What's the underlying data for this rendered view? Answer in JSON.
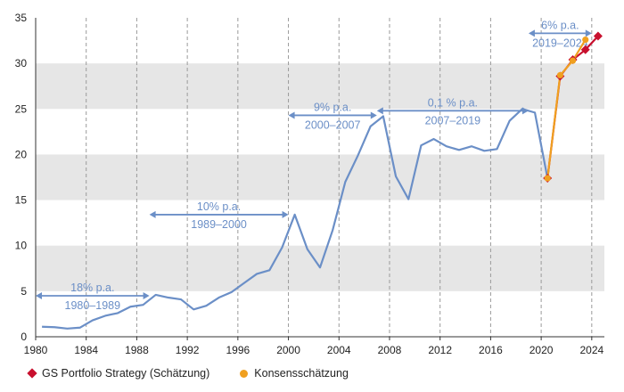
{
  "chart_data": {
    "type": "line",
    "xlim": [
      1980,
      2025
    ],
    "ylim": [
      0,
      35
    ],
    "x_ticks": [
      "1980",
      "1984",
      "1988",
      "1992",
      "1996",
      "2000",
      "2004",
      "2008",
      "2012",
      "2016",
      "2020",
      "2024"
    ],
    "y_ticks": [
      "0",
      "5",
      "10",
      "15",
      "20",
      "25",
      "30",
      "35"
    ],
    "grid": "alternating horizontal bands, dashed vertical lines",
    "legend_position": "bottom-left",
    "colors": {
      "history": "#6b8fc7",
      "gs": "#c8102e",
      "consensus": "#f0a020",
      "band": "#e6e6e6",
      "annotation": "#6b8fc7"
    },
    "series": [
      {
        "key": "history",
        "x": [
          1980.5,
          1981.5,
          1982.5,
          1983.5,
          1984.5,
          1985.5,
          1986.5,
          1987.5,
          1988.5,
          1989.5,
          1990.5,
          1991.5,
          1992.5,
          1993.5,
          1994.5,
          1995.5,
          1996.5,
          1997.5,
          1998.5,
          1999.5,
          2000.5,
          2001.5,
          2002.5,
          2003.5,
          2004.5,
          2005.5,
          2006.5,
          2007.5,
          2008.5,
          2009.5,
          2010.5,
          2011.5,
          2012.5,
          2013.5,
          2014.5,
          2015.5,
          2016.5,
          2017.5,
          2018.5,
          2019.5,
          2020.5
        ],
        "values": [
          1.1,
          1.05,
          0.9,
          1.0,
          1.8,
          2.3,
          2.6,
          3.3,
          3.5,
          4.6,
          4.3,
          4.1,
          3.0,
          3.4,
          4.3,
          4.9,
          5.9,
          6.9,
          7.3,
          9.8,
          13.4,
          9.6,
          7.6,
          11.7,
          17.0,
          19.9,
          23.1,
          24.2,
          17.6,
          15.1,
          21.0,
          21.7,
          20.9,
          20.5,
          20.9,
          20.4,
          20.6,
          23.7,
          25.0,
          24.6,
          17.4
        ]
      },
      {
        "key": "consensus",
        "name": "Konsensschätzung",
        "x": [
          2020.5,
          2021.5,
          2022.5,
          2023.5
        ],
        "values": [
          17.4,
          28.7,
          30.3,
          32.6
        ]
      },
      {
        "key": "gs",
        "name": "GS Portfolio Strategy (Schätzung)",
        "x": [
          2020.5,
          2021.5,
          2022.5,
          2023.5,
          2024.5
        ],
        "values": [
          17.4,
          28.6,
          30.4,
          31.5,
          33.0
        ]
      }
    ],
    "annotations": [
      {
        "rate": "18% p.a.",
        "period": "1980–1989",
        "x_from": 1980,
        "x_to": 1989,
        "y": 4.5
      },
      {
        "rate": "10% p.a.",
        "period": "1989–2000",
        "x_from": 1989,
        "x_to": 2000,
        "y": 13.4
      },
      {
        "rate": "9% p.a.",
        "period": "2000–2007",
        "x_from": 2000,
        "x_to": 2007,
        "y": 24.3
      },
      {
        "rate": "0,1 % p.a.",
        "period": "2007–2019",
        "x_from": 2007,
        "x_to": 2019,
        "y": 24.8
      },
      {
        "rate": "6% p.a.",
        "period": "2019–2024",
        "x_from": 2019,
        "x_to": 2024,
        "y": 33.3
      }
    ]
  },
  "legend": {
    "gs_label": "GS Portfolio Strategy (Schätzung)",
    "consensus_label": "Konsensschätzung"
  }
}
